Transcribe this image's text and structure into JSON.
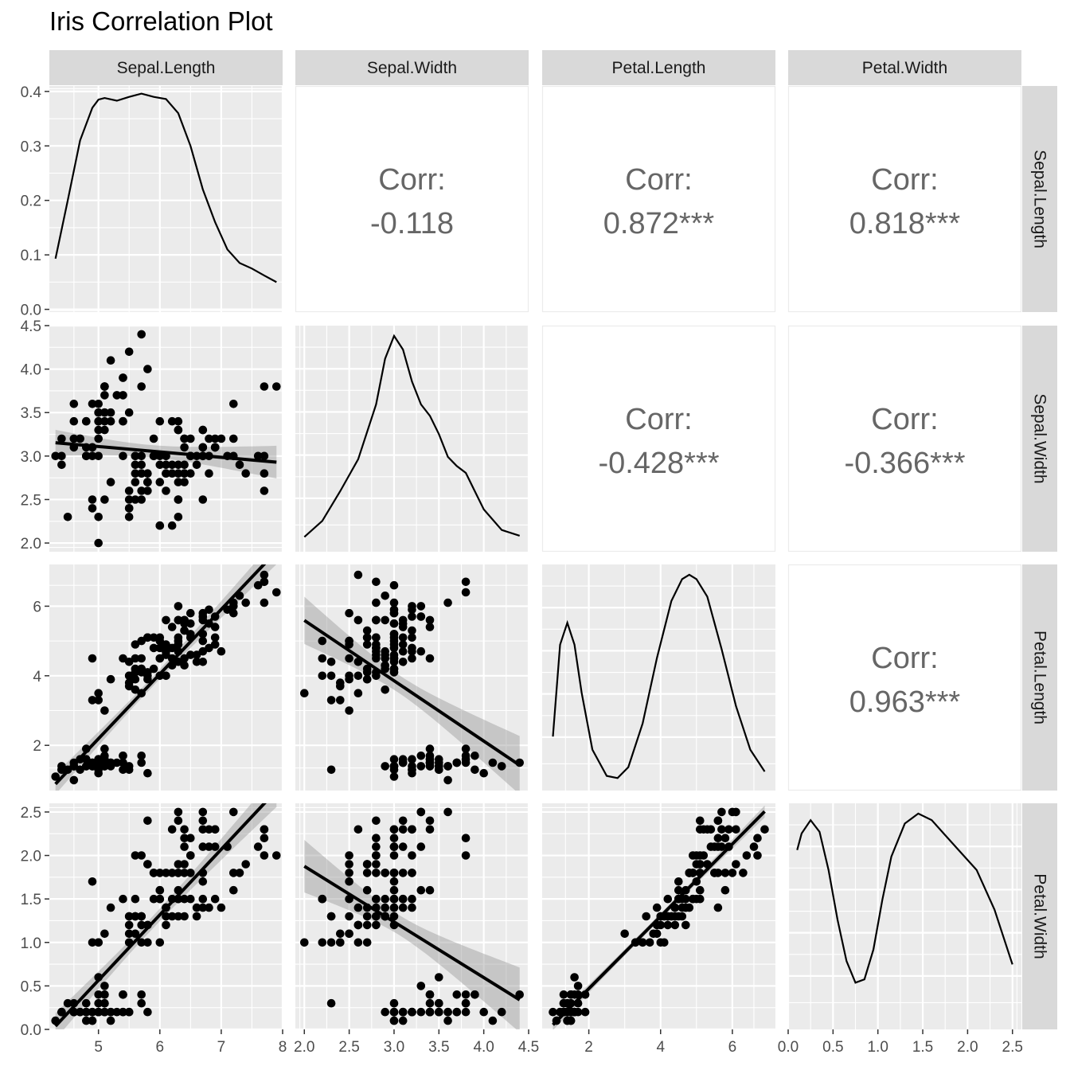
{
  "chart_data": {
    "type": "scatter",
    "title": "Iris Correlation Plot",
    "variables": [
      "Sepal.Length",
      "Sepal.Width",
      "Petal.Length",
      "Petal.Width"
    ],
    "colors": {
      "panel_bg": "#ebebeb",
      "strip_bg": "#d9d9d9",
      "grid": "#ffffff",
      "points": "#000000",
      "ribbon": "#999999",
      "corr_text": "#666666"
    },
    "axes": {
      "Sepal.Length": {
        "range": [
          4.2,
          8.0
        ],
        "ticks": [
          5,
          6,
          7,
          8
        ],
        "tick_labels": [
          "5",
          "6",
          "7",
          "8"
        ]
      },
      "Sepal.Width": {
        "range": [
          1.9,
          4.5
        ],
        "ticks": [
          2.0,
          2.5,
          3.0,
          3.5,
          4.0,
          4.5
        ],
        "tick_labels": [
          "2.0",
          "2.5",
          "3.0",
          "3.5",
          "4.0",
          "4.5"
        ]
      },
      "Petal.Length": {
        "range": [
          0.7,
          7.2
        ],
        "ticks": [
          2,
          4,
          6
        ],
        "tick_labels": [
          "2",
          "4",
          "6"
        ]
      },
      "Petal.Width": {
        "range": [
          0.0,
          2.6
        ],
        "ticks": [
          0.0,
          0.5,
          1.0,
          1.5,
          2.0,
          2.5
        ],
        "tick_labels": [
          "0.0",
          "0.5",
          "1.0",
          "1.5",
          "2.0",
          "2.5"
        ]
      }
    },
    "density_y_axis": {
      "range": [
        -0.005,
        0.41
      ],
      "ticks": [
        0.0,
        0.1,
        0.2,
        0.3,
        0.4
      ],
      "tick_labels": [
        "0.0",
        "0.1",
        "0.2",
        "0.3",
        "0.4"
      ]
    },
    "correlations": [
      {
        "row": 0,
        "col": 1,
        "label": "Corr:",
        "value": "-0.118"
      },
      {
        "row": 0,
        "col": 2,
        "label": "Corr:",
        "value": "0.872***"
      },
      {
        "row": 0,
        "col": 3,
        "label": "Corr:",
        "value": "0.818***"
      },
      {
        "row": 1,
        "col": 2,
        "label": "Corr:",
        "value": "-0.428***"
      },
      {
        "row": 1,
        "col": 3,
        "label": "Corr:",
        "value": "-0.366***"
      },
      {
        "row": 2,
        "col": 3,
        "label": "Corr:",
        "value": "0.963***"
      }
    ],
    "densities": [
      {
        "var": "Sepal.Length",
        "x": [
          4.3,
          4.5,
          4.7,
          4.9,
          5.0,
          5.1,
          5.3,
          5.5,
          5.7,
          5.9,
          6.1,
          6.3,
          6.5,
          6.7,
          6.9,
          7.1,
          7.3,
          7.5,
          7.7,
          7.9
        ],
        "y": [
          0.093,
          0.2,
          0.31,
          0.37,
          0.385,
          0.388,
          0.383,
          0.39,
          0.396,
          0.39,
          0.386,
          0.36,
          0.3,
          0.22,
          0.16,
          0.11,
          0.085,
          0.075,
          0.062,
          0.05
        ]
      },
      {
        "var": "Sepal.Width",
        "x": [
          2.0,
          2.2,
          2.4,
          2.6,
          2.8,
          2.9,
          3.0,
          3.1,
          3.2,
          3.3,
          3.4,
          3.5,
          3.6,
          3.7,
          3.8,
          3.9,
          4.0,
          4.2,
          4.4
        ],
        "y": [
          0.02,
          0.09,
          0.22,
          0.36,
          0.6,
          0.8,
          0.9,
          0.84,
          0.7,
          0.6,
          0.55,
          0.47,
          0.37,
          0.33,
          0.3,
          0.22,
          0.14,
          0.05,
          0.025
        ]
      },
      {
        "var": "Petal.Length",
        "x": [
          1.0,
          1.2,
          1.4,
          1.6,
          1.8,
          2.1,
          2.5,
          2.8,
          3.1,
          3.5,
          3.9,
          4.3,
          4.6,
          4.8,
          5.0,
          5.3,
          5.7,
          6.1,
          6.5,
          6.9
        ],
        "y": [
          0.1,
          0.31,
          0.36,
          0.31,
          0.2,
          0.07,
          0.01,
          0.005,
          0.03,
          0.13,
          0.28,
          0.41,
          0.46,
          0.47,
          0.46,
          0.42,
          0.3,
          0.17,
          0.07,
          0.02
        ]
      },
      {
        "var": "Petal.Width",
        "x": [
          0.1,
          0.15,
          0.25,
          0.35,
          0.45,
          0.55,
          0.65,
          0.75,
          0.85,
          0.95,
          1.05,
          1.15,
          1.3,
          1.45,
          1.6,
          1.75,
          1.9,
          2.1,
          2.3,
          2.5
        ],
        "y": [
          1.02,
          1.12,
          1.2,
          1.13,
          0.9,
          0.6,
          0.35,
          0.22,
          0.24,
          0.42,
          0.72,
          0.98,
          1.18,
          1.24,
          1.2,
          1.11,
          1.02,
          0.9,
          0.66,
          0.33
        ]
      }
    ],
    "fits": [
      {
        "row": 1,
        "col": 0,
        "intercept": 3.419,
        "slope": -0.0619
      },
      {
        "row": 2,
        "col": 0,
        "intercept": -7.101,
        "slope": 1.8584
      },
      {
        "row": 3,
        "col": 0,
        "intercept": -3.2,
        "slope": 0.7529
      },
      {
        "row": 2,
        "col": 1,
        "intercept": 9.063,
        "slope": -1.7352
      },
      {
        "row": 3,
        "col": 1,
        "intercept": 3.157,
        "slope": -0.6403
      },
      {
        "row": 3,
        "col": 2,
        "intercept": -0.363,
        "slope": 0.4158
      }
    ],
    "points": {
      "Sepal.Length": [
        5.1,
        4.9,
        4.7,
        4.6,
        5.0,
        5.4,
        4.6,
        5.0,
        4.4,
        4.9,
        5.4,
        4.8,
        4.8,
        4.3,
        5.8,
        5.7,
        5.4,
        5.1,
        5.7,
        5.1,
        5.4,
        5.1,
        4.6,
        5.1,
        4.8,
        5.0,
        5.0,
        5.2,
        5.2,
        4.7,
        4.8,
        5.4,
        5.2,
        5.5,
        4.9,
        5.0,
        5.5,
        4.9,
        4.4,
        5.1,
        5.0,
        4.5,
        4.4,
        5.0,
        5.1,
        4.8,
        5.1,
        4.6,
        5.3,
        5.0,
        7.0,
        6.4,
        6.9,
        5.5,
        6.5,
        5.7,
        6.3,
        4.9,
        6.6,
        5.2,
        5.0,
        5.9,
        6.0,
        6.1,
        5.6,
        6.7,
        5.6,
        5.8,
        6.2,
        5.6,
        5.9,
        6.1,
        6.3,
        6.1,
        6.4,
        6.6,
        6.8,
        6.7,
        6.0,
        5.7,
        5.5,
        5.5,
        5.8,
        6.0,
        5.4,
        6.0,
        6.7,
        6.3,
        5.6,
        5.5,
        5.5,
        6.1,
        5.8,
        5.0,
        5.6,
        5.7,
        5.7,
        6.2,
        5.1,
        5.7,
        6.3,
        5.8,
        7.1,
        6.3,
        6.5,
        7.6,
        4.9,
        7.3,
        6.7,
        7.2,
        6.5,
        6.4,
        6.8,
        5.7,
        5.8,
        6.4,
        6.5,
        7.7,
        7.7,
        6.0,
        6.9,
        5.6,
        7.7,
        6.3,
        6.7,
        7.2,
        6.2,
        6.1,
        6.4,
        7.2,
        7.4,
        7.9,
        6.4,
        6.3,
        6.1,
        7.7,
        6.3,
        6.4,
        6.0,
        6.9,
        6.7,
        6.9,
        5.8,
        6.8,
        6.7,
        6.7,
        6.3,
        6.5,
        6.2,
        5.9
      ],
      "Sepal.Width": [
        3.5,
        3.0,
        3.2,
        3.1,
        3.6,
        3.9,
        3.4,
        3.4,
        2.9,
        3.1,
        3.7,
        3.4,
        3.0,
        3.0,
        4.0,
        4.4,
        3.9,
        3.5,
        3.8,
        3.8,
        3.4,
        3.7,
        3.6,
        3.3,
        3.4,
        3.0,
        3.4,
        3.5,
        3.4,
        3.2,
        3.1,
        3.4,
        4.1,
        4.2,
        3.1,
        3.2,
        3.5,
        3.6,
        3.0,
        3.4,
        3.5,
        2.3,
        3.2,
        3.5,
        3.8,
        3.0,
        3.8,
        3.2,
        3.7,
        3.3,
        3.2,
        3.2,
        3.1,
        2.3,
        2.8,
        2.8,
        3.3,
        2.4,
        2.9,
        2.7,
        2.0,
        3.0,
        2.2,
        2.9,
        2.9,
        3.1,
        3.0,
        2.7,
        2.2,
        2.5,
        3.2,
        2.8,
        2.5,
        2.8,
        2.9,
        3.0,
        2.8,
        3.0,
        2.9,
        2.6,
        2.4,
        2.4,
        2.7,
        2.7,
        3.0,
        3.4,
        3.1,
        2.3,
        3.0,
        2.5,
        2.6,
        3.0,
        2.6,
        2.3,
        2.7,
        3.0,
        2.9,
        2.9,
        2.5,
        2.8,
        3.3,
        2.7,
        3.0,
        2.9,
        3.0,
        3.0,
        2.5,
        2.9,
        2.5,
        3.6,
        3.2,
        2.7,
        3.0,
        2.5,
        2.8,
        3.2,
        3.0,
        3.8,
        2.6,
        2.2,
        3.2,
        2.8,
        2.8,
        2.7,
        3.3,
        3.2,
        2.8,
        3.0,
        2.8,
        3.0,
        2.8,
        3.8,
        2.8,
        2.8,
        2.6,
        3.0,
        3.4,
        3.1,
        3.0,
        3.1,
        3.1,
        3.1,
        2.7,
        3.2,
        3.3,
        3.0,
        2.5,
        3.0,
        3.4,
        3.0
      ],
      "Petal.Length": [
        1.4,
        1.4,
        1.3,
        1.5,
        1.4,
        1.7,
        1.4,
        1.5,
        1.4,
        1.5,
        1.5,
        1.6,
        1.4,
        1.1,
        1.2,
        1.5,
        1.3,
        1.4,
        1.7,
        1.5,
        1.7,
        1.5,
        1.0,
        1.7,
        1.9,
        1.6,
        1.6,
        1.5,
        1.4,
        1.6,
        1.6,
        1.5,
        1.5,
        1.4,
        1.5,
        1.2,
        1.3,
        1.4,
        1.3,
        1.5,
        1.3,
        1.3,
        1.3,
        1.6,
        1.9,
        1.4,
        1.6,
        1.4,
        1.5,
        1.4,
        4.7,
        4.5,
        4.9,
        4.0,
        4.6,
        4.5,
        4.7,
        3.3,
        4.6,
        3.9,
        3.5,
        4.2,
        4.0,
        4.7,
        3.6,
        4.4,
        4.5,
        4.1,
        4.5,
        3.9,
        4.8,
        4.0,
        4.9,
        4.7,
        4.3,
        4.4,
        4.8,
        5.0,
        4.5,
        3.5,
        3.8,
        3.7,
        3.9,
        5.1,
        4.5,
        4.5,
        4.7,
        4.4,
        4.1,
        4.0,
        4.4,
        4.6,
        4.0,
        3.3,
        4.2,
        4.2,
        4.2,
        4.3,
        3.0,
        4.1,
        6.0,
        5.1,
        5.9,
        5.6,
        5.8,
        6.6,
        4.5,
        6.3,
        5.8,
        6.1,
        5.1,
        5.3,
        5.5,
        5.0,
        5.1,
        5.3,
        5.5,
        6.7,
        6.9,
        5.0,
        5.7,
        4.9,
        6.7,
        4.9,
        5.7,
        6.0,
        4.8,
        4.9,
        5.6,
        5.8,
        6.1,
        6.4,
        5.6,
        5.1,
        5.6,
        6.1,
        5.6,
        5.5,
        4.8,
        5.4,
        5.6,
        5.1,
        5.1,
        5.9,
        5.7,
        5.2,
        5.0,
        5.2,
        5.4,
        5.1
      ],
      "Petal.Width": [
        0.2,
        0.2,
        0.2,
        0.2,
        0.2,
        0.4,
        0.3,
        0.2,
        0.2,
        0.1,
        0.2,
        0.2,
        0.1,
        0.1,
        0.2,
        0.4,
        0.4,
        0.3,
        0.3,
        0.3,
        0.2,
        0.4,
        0.2,
        0.5,
        0.2,
        0.2,
        0.4,
        0.2,
        0.2,
        0.2,
        0.2,
        0.4,
        0.1,
        0.2,
        0.2,
        0.2,
        0.2,
        0.1,
        0.2,
        0.2,
        0.3,
        0.3,
        0.2,
        0.6,
        0.4,
        0.3,
        0.2,
        0.2,
        0.2,
        0.2,
        1.4,
        1.5,
        1.5,
        1.3,
        1.5,
        1.3,
        1.6,
        1.0,
        1.3,
        1.4,
        1.0,
        1.5,
        1.0,
        1.4,
        1.3,
        1.4,
        1.5,
        1.0,
        1.5,
        1.1,
        1.8,
        1.3,
        1.5,
        1.2,
        1.3,
        1.4,
        1.4,
        1.7,
        1.5,
        1.0,
        1.1,
        1.0,
        1.2,
        1.6,
        1.5,
        1.6,
        1.5,
        1.3,
        1.3,
        1.3,
        1.2,
        1.4,
        1.2,
        1.0,
        1.3,
        1.2,
        1.3,
        1.3,
        1.1,
        1.3,
        2.5,
        1.9,
        2.1,
        1.8,
        2.2,
        2.1,
        1.7,
        1.8,
        1.8,
        2.5,
        2.0,
        1.9,
        2.1,
        2.0,
        2.4,
        2.3,
        1.8,
        2.2,
        2.3,
        1.5,
        2.3,
        2.0,
        2.0,
        1.8,
        2.1,
        1.8,
        1.8,
        1.8,
        2.1,
        1.6,
        1.9,
        2.0,
        2.2,
        1.5,
        1.4,
        2.3,
        2.4,
        1.8,
        1.8,
        2.1,
        2.4,
        2.3,
        1.9,
        2.3,
        2.5,
        2.3,
        1.9,
        2.0,
        2.3,
        1.8
      ]
    }
  }
}
